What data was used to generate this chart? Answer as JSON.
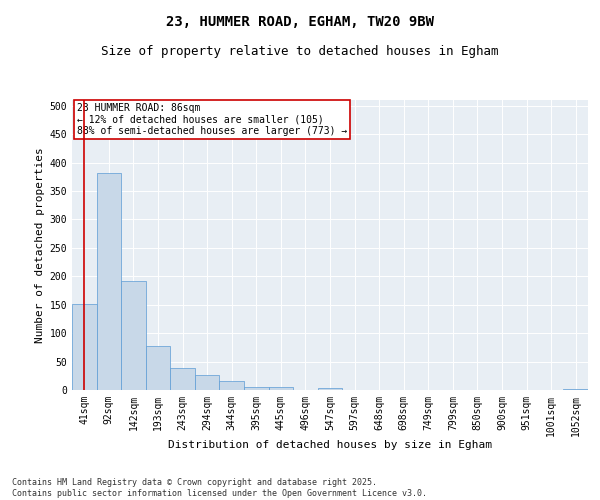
{
  "title": "23, HUMMER ROAD, EGHAM, TW20 9BW",
  "subtitle": "Size of property relative to detached houses in Egham",
  "xlabel": "Distribution of detached houses by size in Egham",
  "ylabel": "Number of detached properties",
  "categories": [
    "41sqm",
    "92sqm",
    "142sqm",
    "193sqm",
    "243sqm",
    "294sqm",
    "344sqm",
    "395sqm",
    "445sqm",
    "496sqm",
    "547sqm",
    "597sqm",
    "648sqm",
    "698sqm",
    "749sqm",
    "799sqm",
    "850sqm",
    "900sqm",
    "951sqm",
    "1001sqm",
    "1052sqm"
  ],
  "values": [
    152,
    381,
    192,
    78,
    38,
    27,
    15,
    6,
    5,
    0,
    3,
    0,
    0,
    0,
    0,
    0,
    0,
    0,
    0,
    0,
    2
  ],
  "bar_color": "#c8d8e8",
  "bar_edge_color": "#5b9bd5",
  "marker_line_color": "#cc0000",
  "annotation_text": "23 HUMMER ROAD: 86sqm\n← 12% of detached houses are smaller (105)\n88% of semi-detached houses are larger (773) →",
  "annotation_box_color": "#ffffff",
  "annotation_box_edge": "#cc0000",
  "footer1": "Contains HM Land Registry data © Crown copyright and database right 2025.",
  "footer2": "Contains public sector information licensed under the Open Government Licence v3.0.",
  "ylim": [
    0,
    510
  ],
  "yticks": [
    0,
    50,
    100,
    150,
    200,
    250,
    300,
    350,
    400,
    450,
    500
  ],
  "background_color": "#e8eef4",
  "title_fontsize": 10,
  "subtitle_fontsize": 9,
  "axis_fontsize": 8,
  "tick_fontsize": 7,
  "annotation_fontsize": 7,
  "footer_fontsize": 6
}
